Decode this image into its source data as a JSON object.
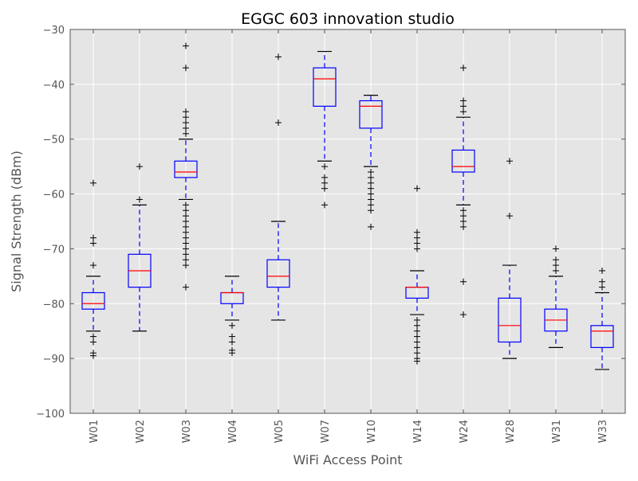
{
  "chart_data": {
    "type": "box",
    "title": "EGGC 603 innovation studio",
    "xlabel": "WiFi Access Point",
    "ylabel": "Signal Strength (dBm)",
    "ylim": [
      -100,
      -30
    ],
    "yticks": [
      -30,
      -40,
      -50,
      -60,
      -70,
      -80,
      -90,
      -100
    ],
    "ytick_labels": [
      "−30",
      "−40",
      "−50",
      "−60",
      "−70",
      "−80",
      "−90",
      "−100"
    ],
    "grid": true,
    "categories": [
      "W01",
      "W02",
      "W03",
      "W04",
      "W05",
      "W07",
      "W10",
      "W14",
      "W24",
      "W28",
      "W31",
      "W33"
    ],
    "boxes": [
      {
        "label": "W01",
        "whisker_low": -85,
        "q1": -81,
        "median": -80,
        "q3": -78,
        "whisker_high": -75,
        "outliers": [
          -58,
          -68,
          -69,
          -73,
          -86,
          -87,
          -89,
          -89.5
        ]
      },
      {
        "label": "W02",
        "whisker_low": -85,
        "q1": -77,
        "median": -74,
        "q3": -71,
        "whisker_high": -62,
        "outliers": [
          -55,
          -61
        ]
      },
      {
        "label": "W03",
        "whisker_low": -61,
        "q1": -57,
        "median": -56,
        "q3": -54,
        "whisker_high": -50,
        "outliers": [
          -33,
          -37,
          -45,
          -46,
          -47,
          -48,
          -49,
          -62,
          -63,
          -64,
          -65,
          -66,
          -67,
          -68,
          -69,
          -70,
          -71,
          -72,
          -73,
          -77
        ]
      },
      {
        "label": "W04",
        "whisker_low": -83,
        "q1": -80,
        "median": -78,
        "q3": -78,
        "whisker_high": -75,
        "outliers": [
          -84,
          -86,
          -87,
          -88.5,
          -89
        ]
      },
      {
        "label": "W05",
        "whisker_low": -83,
        "q1": -77,
        "median": -75,
        "q3": -72,
        "whisker_high": -65,
        "outliers": [
          -35,
          -47
        ]
      },
      {
        "label": "W07",
        "whisker_low": -54,
        "q1": -44,
        "median": -39,
        "q3": -37,
        "whisker_high": -34,
        "outliers": [
          -55,
          -57,
          -58,
          -59,
          -62
        ]
      },
      {
        "label": "W10",
        "whisker_low": -55,
        "q1": -48,
        "median": -44,
        "q3": -43,
        "whisker_high": -42,
        "outliers": [
          -56,
          -57,
          -58,
          -59,
          -60,
          -61,
          -62,
          -63,
          -66
        ]
      },
      {
        "label": "W14",
        "whisker_low": -82,
        "q1": -79,
        "median": -77,
        "q3": -77,
        "whisker_high": -74,
        "outliers": [
          -59,
          -67,
          -68,
          -69,
          -70,
          -83,
          -84,
          -85,
          -86,
          -87,
          -88,
          -89,
          -90,
          -90.5
        ]
      },
      {
        "label": "W24",
        "whisker_low": -62,
        "q1": -56,
        "median": -55,
        "q3": -52,
        "whisker_high": -46,
        "outliers": [
          -37,
          -43,
          -44,
          -45,
          -63,
          -64,
          -65,
          -66,
          -76,
          -82
        ]
      },
      {
        "label": "W28",
        "whisker_low": -90,
        "q1": -87,
        "median": -84,
        "q3": -79,
        "whisker_high": -73,
        "outliers": [
          -54,
          -64
        ]
      },
      {
        "label": "W31",
        "whisker_low": -88,
        "q1": -85,
        "median": -83,
        "q3": -81,
        "whisker_high": -75,
        "outliers": [
          -70,
          -72,
          -73,
          -74
        ]
      },
      {
        "label": "W33",
        "whisker_low": -92,
        "q1": -88,
        "median": -85,
        "q3": -84,
        "whisker_high": -78,
        "outliers": [
          -74,
          -76,
          -77
        ]
      }
    ],
    "colors": {
      "plot_background": "#e5e5e5",
      "grid": "#ffffff",
      "box": "#0000ff",
      "median": "#ff0000",
      "outlier": "#000000",
      "text": "#555555",
      "title": "#000000"
    }
  }
}
